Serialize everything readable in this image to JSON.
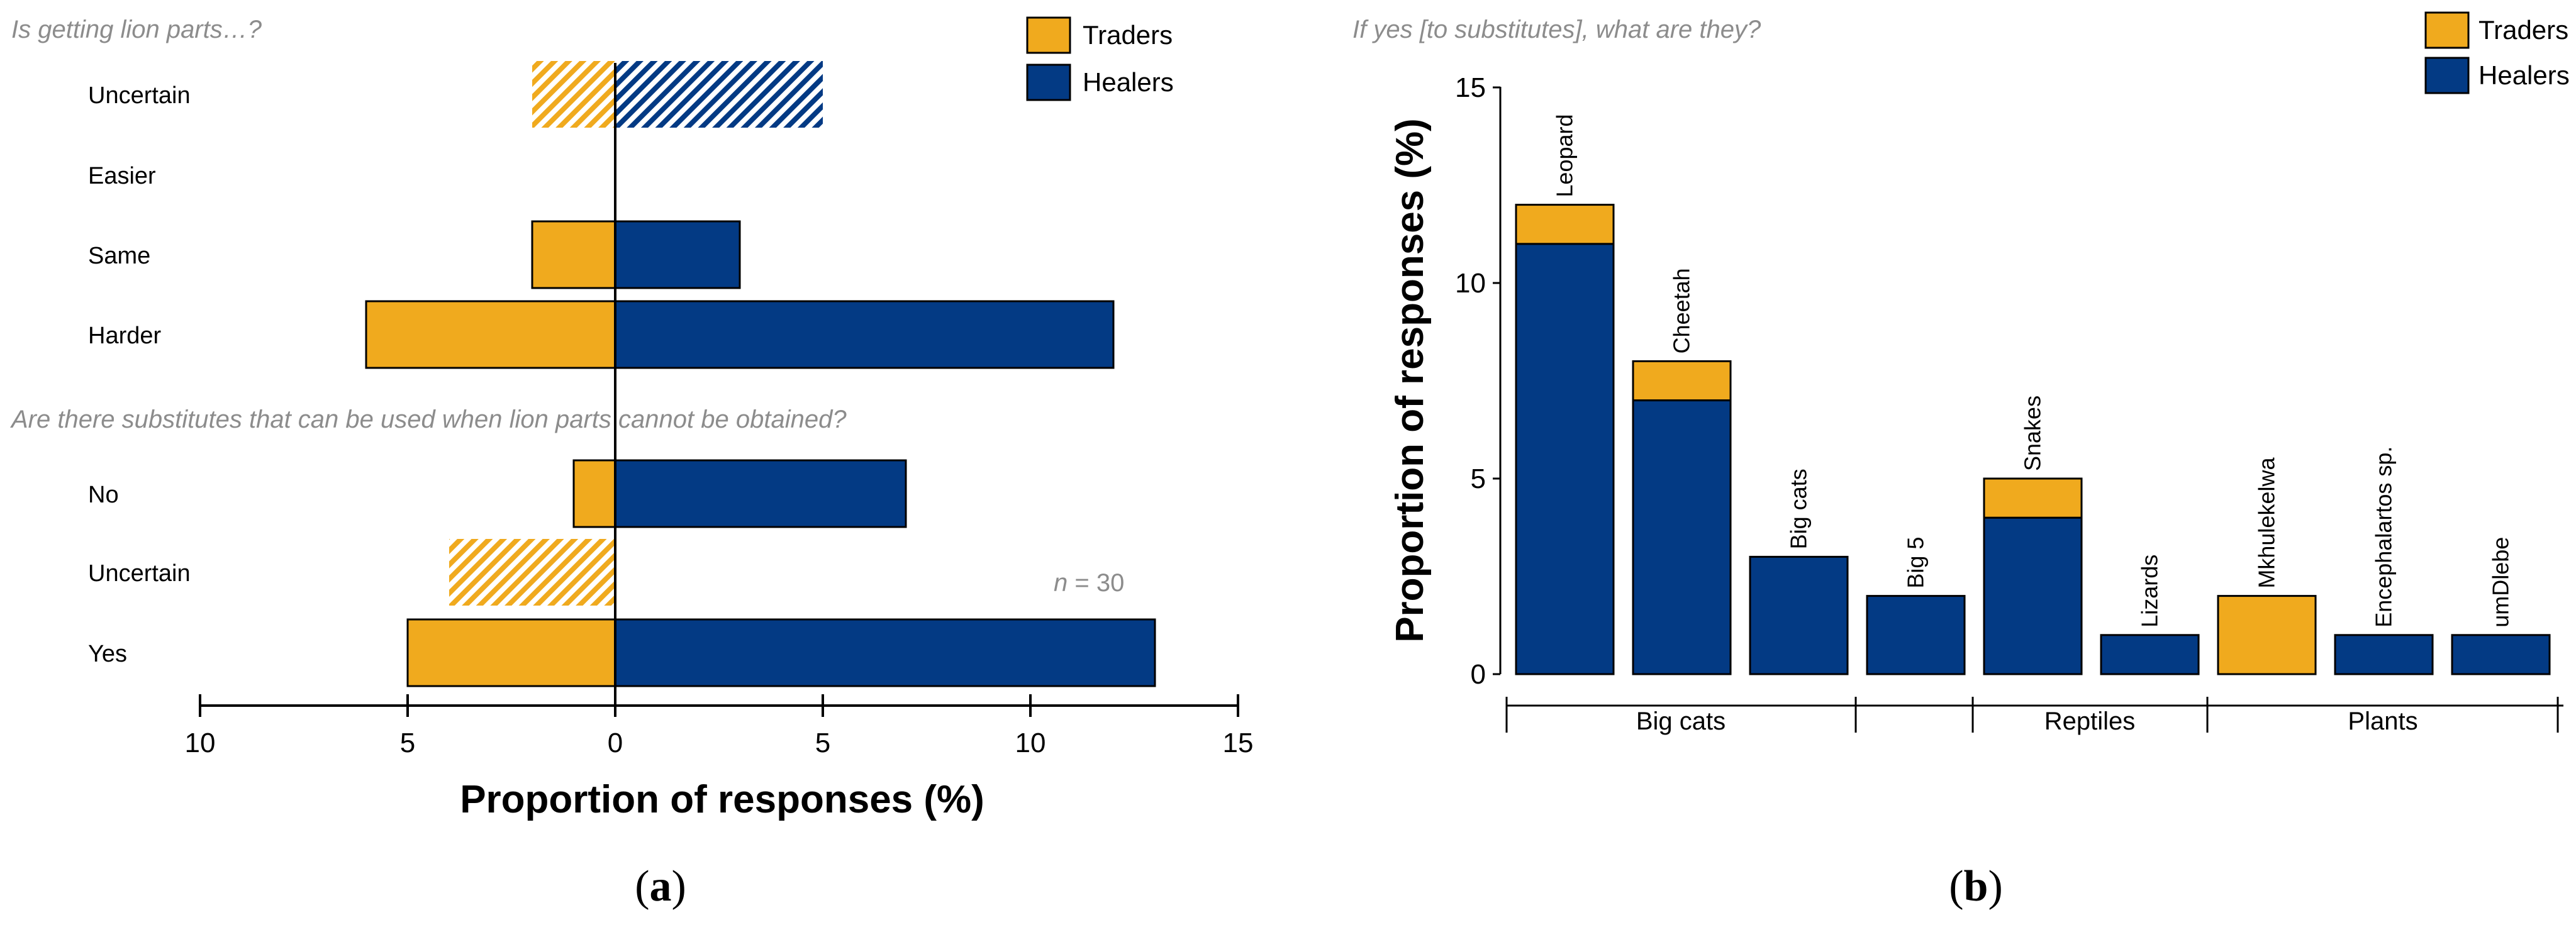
{
  "colors": {
    "traders": "#F0AA1E",
    "healers": "#033A84",
    "question": "#8c8c8c"
  },
  "chart_data": [
    {
      "panel": "a",
      "type": "bar",
      "orientation": "horizontal-diverging",
      "xlabel": "Proportion of responses (%)",
      "xlim": [
        -10,
        15
      ],
      "x_ticks": [
        -10,
        -5,
        0,
        5,
        10,
        15
      ],
      "x_tick_labels": [
        "10",
        "5",
        "0",
        "5",
        "10",
        "15"
      ],
      "legend": [
        "Traders",
        "Healers"
      ],
      "annotation": {
        "italic": "n",
        "rest": " = 30"
      },
      "groups": [
        {
          "question": "Is getting lion parts…?",
          "categories": [
            "Uncertain",
            "Easier",
            "Same",
            "Harder"
          ],
          "series": [
            {
              "name": "Traders",
              "values": [
                -2,
                0,
                -2,
                -6
              ]
            },
            {
              "name": "Healers",
              "values": [
                5,
                0,
                3,
                12
              ]
            }
          ],
          "hatched": [
            "Uncertain"
          ]
        },
        {
          "question": "Are there substitutes that can be used when lion parts cannot be obtained?",
          "categories": [
            "No",
            "Uncertain",
            "Yes"
          ],
          "series": [
            {
              "name": "Traders",
              "values": [
                -1,
                -4,
                -5
              ]
            },
            {
              "name": "Healers",
              "values": [
                7,
                0,
                13
              ]
            }
          ],
          "hatched": [
            "Uncertain"
          ]
        }
      ]
    },
    {
      "panel": "b",
      "type": "bar",
      "stacked": true,
      "title": "If yes [to substitutes], what are they?",
      "ylabel": "Proportion of responses (%)",
      "ylim": [
        0,
        15
      ],
      "y_ticks": [
        0,
        5,
        10,
        15
      ],
      "categories": [
        "Leopard",
        "Cheetah",
        "Big cats",
        "Big 5",
        "Snakes",
        "Lizards",
        "Mkhulekelwa",
        "Encephalartos sp.",
        "umDlebe"
      ],
      "series": [
        {
          "name": "Healers",
          "values": [
            11,
            7,
            3,
            2,
            4,
            1,
            0,
            1,
            1
          ]
        },
        {
          "name": "Traders",
          "values": [
            1,
            1,
            0,
            0,
            1,
            0,
            2,
            0,
            0
          ]
        }
      ],
      "legend": [
        "Traders",
        "Healers"
      ],
      "category_groups": [
        "Big cats",
        "",
        "Reptiles",
        "Plants"
      ]
    }
  ],
  "panel_labels": [
    "a",
    "b"
  ]
}
